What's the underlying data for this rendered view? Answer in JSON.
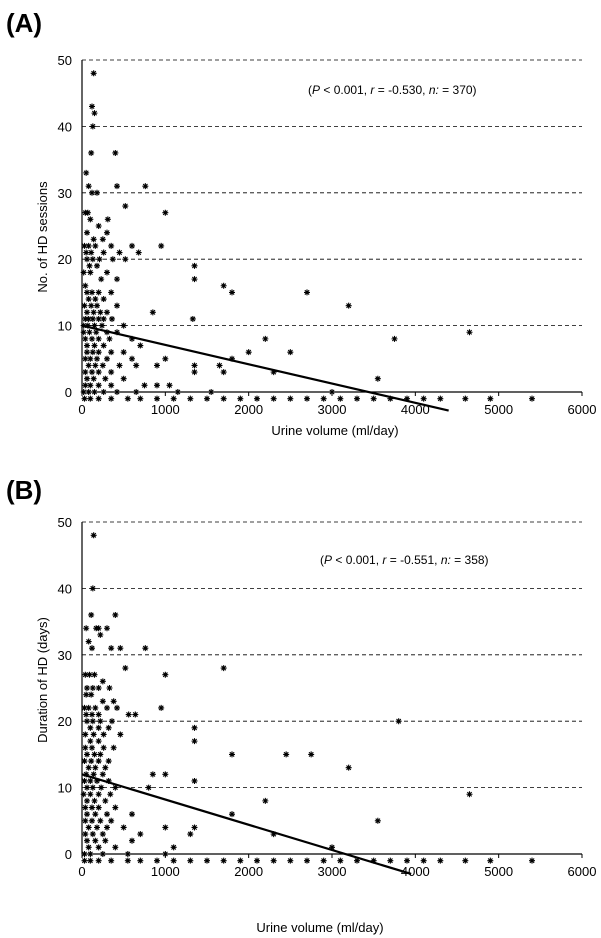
{
  "chart_data": [
    {
      "type": "scatter",
      "panel_label": "(A)",
      "xlabel": "Urine volume  (ml/day)",
      "ylabel": "No. of HD sessions",
      "xlim": [
        0,
        6000
      ],
      "ylim": [
        0,
        50
      ],
      "x_ticks": [
        0,
        1000,
        2000,
        3000,
        4000,
        5000,
        6000
      ],
      "y_ticks": [
        0,
        10,
        20,
        30,
        40,
        50
      ],
      "grid": "horizontal dashed",
      "stats": {
        "p_label": "P",
        "p_value": "< 0.001,",
        "r_label": "r",
        "r_value": "= -0.530,",
        "n_label": "n:",
        "n_value": "= 370)"
      },
      "regression": {
        "x": [
          0,
          4400
        ],
        "y": [
          10,
          -2.8
        ]
      },
      "points": [
        [
          140,
          48
        ],
        [
          120,
          43
        ],
        [
          150,
          42
        ],
        [
          130,
          40
        ],
        [
          50,
          33
        ],
        [
          110,
          36
        ],
        [
          400,
          36
        ],
        [
          80,
          31
        ],
        [
          180,
          30
        ],
        [
          120,
          30
        ],
        [
          420,
          31
        ],
        [
          760,
          31
        ],
        [
          310,
          26
        ],
        [
          520,
          28
        ],
        [
          1000,
          27
        ],
        [
          40,
          27
        ],
        [
          70,
          27
        ],
        [
          100,
          26
        ],
        [
          60,
          24
        ],
        [
          200,
          25
        ],
        [
          300,
          24
        ],
        [
          140,
          23
        ],
        [
          250,
          23
        ],
        [
          350,
          22
        ],
        [
          600,
          22
        ],
        [
          950,
          22
        ],
        [
          30,
          22
        ],
        [
          80,
          22
        ],
        [
          160,
          22
        ],
        [
          50,
          21
        ],
        [
          110,
          21
        ],
        [
          260,
          21
        ],
        [
          450,
          21
        ],
        [
          680,
          21
        ],
        [
          60,
          20
        ],
        [
          130,
          20
        ],
        [
          210,
          20
        ],
        [
          370,
          20
        ],
        [
          520,
          20
        ],
        [
          1350,
          19
        ],
        [
          90,
          19
        ],
        [
          180,
          19
        ],
        [
          300,
          18
        ],
        [
          20,
          18
        ],
        [
          100,
          18
        ],
        [
          230,
          17
        ],
        [
          420,
          17
        ],
        [
          1350,
          17
        ],
        [
          1700,
          16
        ],
        [
          1800,
          15
        ],
        [
          2700,
          15
        ],
        [
          40,
          16
        ],
        [
          60,
          15
        ],
        [
          120,
          15
        ],
        [
          200,
          15
        ],
        [
          350,
          15
        ],
        [
          80,
          14
        ],
        [
          160,
          14
        ],
        [
          260,
          14
        ],
        [
          30,
          13
        ],
        [
          110,
          13
        ],
        [
          180,
          13
        ],
        [
          420,
          13
        ],
        [
          3200,
          13
        ],
        [
          60,
          12
        ],
        [
          140,
          12
        ],
        [
          220,
          12
        ],
        [
          300,
          12
        ],
        [
          850,
          12
        ],
        [
          40,
          11
        ],
        [
          80,
          11
        ],
        [
          130,
          11
        ],
        [
          200,
          11
        ],
        [
          260,
          11
        ],
        [
          360,
          11
        ],
        [
          1330,
          11
        ],
        [
          20,
          10
        ],
        [
          70,
          10
        ],
        [
          150,
          10
        ],
        [
          240,
          10
        ],
        [
          500,
          10
        ],
        [
          20,
          9
        ],
        [
          90,
          9
        ],
        [
          170,
          9
        ],
        [
          300,
          9
        ],
        [
          420,
          9
        ],
        [
          4650,
          9
        ],
        [
          40,
          8
        ],
        [
          120,
          8
        ],
        [
          200,
          8
        ],
        [
          330,
          8
        ],
        [
          600,
          8
        ],
        [
          2200,
          8
        ],
        [
          3750,
          8
        ],
        [
          60,
          7
        ],
        [
          150,
          7
        ],
        [
          260,
          7
        ],
        [
          700,
          7
        ],
        [
          60,
          6
        ],
        [
          130,
          6
        ],
        [
          200,
          6
        ],
        [
          350,
          6
        ],
        [
          500,
          6
        ],
        [
          2000,
          6
        ],
        [
          2500,
          6
        ],
        [
          40,
          5
        ],
        [
          100,
          5
        ],
        [
          180,
          5
        ],
        [
          300,
          5
        ],
        [
          600,
          5
        ],
        [
          1000,
          5
        ],
        [
          1800,
          5
        ],
        [
          80,
          4
        ],
        [
          160,
          4
        ],
        [
          250,
          4
        ],
        [
          450,
          4
        ],
        [
          650,
          4
        ],
        [
          900,
          4
        ],
        [
          1350,
          4
        ],
        [
          1650,
          4
        ],
        [
          40,
          3
        ],
        [
          120,
          3
        ],
        [
          200,
          3
        ],
        [
          350,
          3
        ],
        [
          1350,
          3
        ],
        [
          1700,
          3
        ],
        [
          2300,
          3
        ],
        [
          60,
          2
        ],
        [
          140,
          2
        ],
        [
          280,
          2
        ],
        [
          500,
          2
        ],
        [
          3550,
          2
        ],
        [
          40,
          1
        ],
        [
          100,
          1
        ],
        [
          200,
          1
        ],
        [
          350,
          1
        ],
        [
          750,
          1
        ],
        [
          900,
          1
        ],
        [
          1050,
          1
        ],
        [
          20,
          0
        ],
        [
          80,
          0
        ],
        [
          150,
          0
        ],
        [
          260,
          0
        ],
        [
          420,
          0
        ],
        [
          650,
          0
        ],
        [
          1150,
          0
        ],
        [
          1550,
          0
        ],
        [
          3000,
          0
        ],
        [
          30,
          -1
        ],
        [
          100,
          -1
        ],
        [
          200,
          -1
        ],
        [
          350,
          -1
        ],
        [
          550,
          -1
        ],
        [
          700,
          -1
        ],
        [
          900,
          -1
        ],
        [
          1100,
          -1
        ],
        [
          1300,
          -1
        ],
        [
          1500,
          -1
        ],
        [
          1700,
          -1
        ],
        [
          1900,
          -1
        ],
        [
          2100,
          -1
        ],
        [
          2300,
          -1
        ],
        [
          2500,
          -1
        ],
        [
          2700,
          -1
        ],
        [
          2900,
          -1
        ],
        [
          3100,
          -1
        ],
        [
          3300,
          -1
        ],
        [
          3500,
          -1
        ],
        [
          3700,
          -1
        ],
        [
          3900,
          -1
        ],
        [
          4100,
          -1
        ],
        [
          4300,
          -1
        ],
        [
          4600,
          -1
        ],
        [
          4900,
          -1
        ],
        [
          5400,
          -1
        ]
      ]
    },
    {
      "type": "scatter",
      "panel_label": "(B)",
      "xlabel": "Urine volume (ml/day)",
      "ylabel": "Duration of HD (days)",
      "xlim": [
        0,
        6000
      ],
      "ylim": [
        0,
        50
      ],
      "x_ticks": [
        0,
        1000,
        2000,
        3000,
        4000,
        5000,
        6000
      ],
      "y_ticks": [
        0,
        10,
        20,
        30,
        40,
        50
      ],
      "grid": "horizontal dashed",
      "stats": {
        "p_label": "P",
        "p_value": "< 0.001,",
        "r_label": "r",
        "r_value": "= -0.551,",
        "n_label": "n:",
        "n_value": "= 358)"
      },
      "regression": {
        "x": [
          0,
          3950
        ],
        "y": [
          12,
          -3
        ]
      },
      "points": [
        [
          140,
          48
        ],
        [
          130,
          40
        ],
        [
          50,
          34
        ],
        [
          110,
          36
        ],
        [
          400,
          36
        ],
        [
          170,
          34
        ],
        [
          200,
          34
        ],
        [
          300,
          34
        ],
        [
          80,
          32
        ],
        [
          220,
          33
        ],
        [
          120,
          31
        ],
        [
          350,
          31
        ],
        [
          460,
          31
        ],
        [
          760,
          31
        ],
        [
          1700,
          28
        ],
        [
          520,
          28
        ],
        [
          1000,
          27
        ],
        [
          40,
          27
        ],
        [
          90,
          27
        ],
        [
          150,
          27
        ],
        [
          250,
          26
        ],
        [
          60,
          25
        ],
        [
          130,
          25
        ],
        [
          200,
          25
        ],
        [
          330,
          25
        ],
        [
          50,
          24
        ],
        [
          110,
          24
        ],
        [
          250,
          23
        ],
        [
          380,
          23
        ],
        [
          30,
          22
        ],
        [
          80,
          22
        ],
        [
          160,
          22
        ],
        [
          300,
          22
        ],
        [
          420,
          22
        ],
        [
          640,
          21
        ],
        [
          950,
          22
        ],
        [
          50,
          21
        ],
        [
          120,
          21
        ],
        [
          200,
          21
        ],
        [
          560,
          21
        ],
        [
          60,
          20
        ],
        [
          130,
          20
        ],
        [
          220,
          20
        ],
        [
          360,
          20
        ],
        [
          3800,
          20
        ],
        [
          1350,
          19
        ],
        [
          100,
          19
        ],
        [
          200,
          19
        ],
        [
          320,
          19
        ],
        [
          40,
          18
        ],
        [
          140,
          18
        ],
        [
          260,
          18
        ],
        [
          460,
          18
        ],
        [
          1350,
          17
        ],
        [
          100,
          17
        ],
        [
          200,
          17
        ],
        [
          40,
          16
        ],
        [
          120,
          16
        ],
        [
          260,
          16
        ],
        [
          380,
          16
        ],
        [
          60,
          15
        ],
        [
          150,
          15
        ],
        [
          220,
          15
        ],
        [
          1800,
          15
        ],
        [
          2450,
          15
        ],
        [
          2750,
          15
        ],
        [
          30,
          14
        ],
        [
          110,
          14
        ],
        [
          200,
          14
        ],
        [
          320,
          14
        ],
        [
          3200,
          13
        ],
        [
          80,
          13
        ],
        [
          160,
          13
        ],
        [
          280,
          13
        ],
        [
          50,
          12
        ],
        [
          140,
          12
        ],
        [
          250,
          12
        ],
        [
          850,
          12
        ],
        [
          1000,
          12
        ],
        [
          30,
          11
        ],
        [
          100,
          11
        ],
        [
          180,
          11
        ],
        [
          320,
          11
        ],
        [
          1350,
          11
        ],
        [
          60,
          10
        ],
        [
          130,
          10
        ],
        [
          230,
          10
        ],
        [
          400,
          10
        ],
        [
          800,
          10
        ],
        [
          20,
          9
        ],
        [
          100,
          9
        ],
        [
          200,
          9
        ],
        [
          340,
          9
        ],
        [
          4650,
          9
        ],
        [
          60,
          8
        ],
        [
          150,
          8
        ],
        [
          280,
          8
        ],
        [
          2200,
          8
        ],
        [
          40,
          7
        ],
        [
          120,
          7
        ],
        [
          200,
          7
        ],
        [
          400,
          7
        ],
        [
          60,
          6
        ],
        [
          160,
          6
        ],
        [
          300,
          6
        ],
        [
          600,
          6
        ],
        [
          1800,
          6
        ],
        [
          40,
          5
        ],
        [
          120,
          5
        ],
        [
          220,
          5
        ],
        [
          350,
          5
        ],
        [
          3550,
          5
        ],
        [
          80,
          4
        ],
        [
          180,
          4
        ],
        [
          300,
          4
        ],
        [
          500,
          4
        ],
        [
          1000,
          4
        ],
        [
          1350,
          4
        ],
        [
          40,
          3
        ],
        [
          130,
          3
        ],
        [
          250,
          3
        ],
        [
          700,
          3
        ],
        [
          1300,
          3
        ],
        [
          2300,
          3
        ],
        [
          60,
          2
        ],
        [
          160,
          2
        ],
        [
          280,
          2
        ],
        [
          600,
          2
        ],
        [
          80,
          1
        ],
        [
          200,
          1
        ],
        [
          400,
          1
        ],
        [
          1100,
          1
        ],
        [
          3000,
          1
        ],
        [
          30,
          0
        ],
        [
          100,
          0
        ],
        [
          250,
          0
        ],
        [
          550,
          0
        ],
        [
          1000,
          0
        ],
        [
          30,
          -1
        ],
        [
          100,
          -1
        ],
        [
          200,
          -1
        ],
        [
          350,
          -1
        ],
        [
          550,
          -1
        ],
        [
          700,
          -1
        ],
        [
          900,
          -1
        ],
        [
          1100,
          -1
        ],
        [
          1300,
          -1
        ],
        [
          1500,
          -1
        ],
        [
          1700,
          -1
        ],
        [
          1900,
          -1
        ],
        [
          2100,
          -1
        ],
        [
          2300,
          -1
        ],
        [
          2500,
          -1
        ],
        [
          2700,
          -1
        ],
        [
          2900,
          -1
        ],
        [
          3100,
          -1
        ],
        [
          3300,
          -1
        ],
        [
          3500,
          -1
        ],
        [
          3700,
          -1
        ],
        [
          3900,
          -1
        ],
        [
          4100,
          -1
        ],
        [
          4300,
          -1
        ],
        [
          4600,
          -1
        ],
        [
          4900,
          -1
        ],
        [
          5400,
          -1
        ]
      ]
    }
  ]
}
